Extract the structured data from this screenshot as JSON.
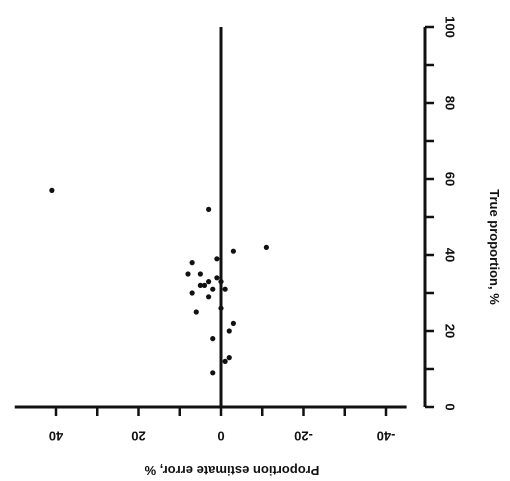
{
  "chart_data": {
    "type": "scatter",
    "orientation": "rotated 90° clockwise (page viewed sideways)",
    "x_axis": {
      "label": "True proportion, %",
      "ticks": [
        "0",
        "20",
        "40",
        "60",
        "80",
        "100"
      ],
      "range": [
        0,
        100
      ]
    },
    "y_axis": {
      "label": "Proportion estimate error, %",
      "ticks": [
        "40",
        "20",
        "0",
        "-20",
        "-40"
      ],
      "range": [
        -45,
        50
      ]
    },
    "grid": false,
    "points": [
      {
        "x": 57,
        "y": 41
      },
      {
        "x": 52,
        "y": 3
      },
      {
        "x": 42,
        "y": -11
      },
      {
        "x": 41,
        "y": -3
      },
      {
        "x": 39,
        "y": 1
      },
      {
        "x": 38,
        "y": 7
      },
      {
        "x": 35,
        "y": 5
      },
      {
        "x": 35,
        "y": 8
      },
      {
        "x": 34,
        "y": 1
      },
      {
        "x": 33,
        "y": 0
      },
      {
        "x": 33,
        "y": 3
      },
      {
        "x": 32,
        "y": 4
      },
      {
        "x": 32,
        "y": 5
      },
      {
        "x": 31,
        "y": -1
      },
      {
        "x": 31,
        "y": 2
      },
      {
        "x": 30,
        "y": 7
      },
      {
        "x": 29,
        "y": 3
      },
      {
        "x": 26,
        "y": 0
      },
      {
        "x": 25,
        "y": 6
      },
      {
        "x": 22,
        "y": -3
      },
      {
        "x": 20,
        "y": -2
      },
      {
        "x": 18,
        "y": 2
      },
      {
        "x": 13,
        "y": -2
      },
      {
        "x": 12,
        "y": -1
      },
      {
        "x": 9,
        "y": 2
      }
    ]
  }
}
